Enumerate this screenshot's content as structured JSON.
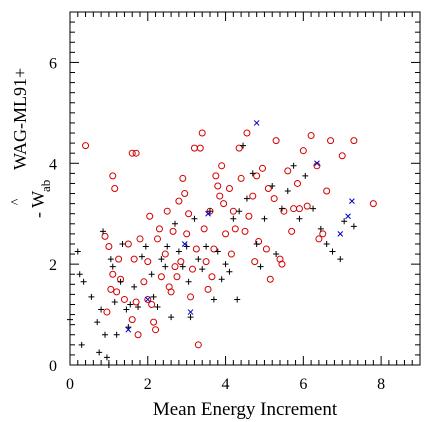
{
  "chart_data": {
    "type": "scatter",
    "xlabel": "Mean Energy Increment",
    "ylabel_main": "WAG-ML91+",
    "ylabel_sub_w": "- W",
    "ylabel_sub_ab": "ab",
    "ylabel_hat": "^",
    "xlim": [
      0,
      9
    ],
    "ylim": [
      0,
      7
    ],
    "x_ticks": [
      0,
      2,
      4,
      6,
      8
    ],
    "x_ticks_labels": [
      "0",
      "2",
      "4",
      "6",
      "8"
    ],
    "y_ticks": [
      0,
      2,
      4,
      6
    ],
    "y_ticks_labels": [
      "0",
      "2",
      "4",
      "6"
    ],
    "grid": false,
    "colors": {
      "circles": "#d40000",
      "plus": "#000000",
      "cross": "#0000cc"
    },
    "series": [
      {
        "marker": "circle",
        "color": "#d40000",
        "points": [
          [
            0.4,
            4.35
          ],
          [
            1.1,
            3.75
          ],
          [
            1.15,
            3.5
          ],
          [
            1.6,
            4.2
          ],
          [
            0.95,
            1.05
          ],
          [
            1.05,
            1.5
          ],
          [
            1.1,
            1.8
          ],
          [
            1.2,
            1.45
          ],
          [
            1.3,
            1.7
          ],
          [
            1.4,
            1.3
          ],
          [
            1.5,
            2.4
          ],
          [
            1.6,
            0.9
          ],
          [
            1.65,
            2.1
          ],
          [
            1.7,
            1.25
          ],
          [
            1.75,
            0.6
          ],
          [
            1.8,
            2.5
          ],
          [
            1.9,
            1.65
          ],
          [
            2.0,
            2.05
          ],
          [
            2.05,
            2.95
          ],
          [
            2.1,
            1.2
          ],
          [
            2.15,
            0.85
          ],
          [
            2.2,
            0.7
          ],
          [
            2.25,
            2.5
          ],
          [
            2.3,
            2.7
          ],
          [
            2.35,
            1.75
          ],
          [
            2.45,
            2.2
          ],
          [
            2.5,
            3.05
          ],
          [
            2.55,
            1.55
          ],
          [
            2.6,
            1.45
          ],
          [
            2.65,
            2.65
          ],
          [
            2.7,
            1.95
          ],
          [
            2.75,
            1.75
          ],
          [
            2.8,
            3.25
          ],
          [
            2.85,
            2.05
          ],
          [
            2.9,
            3.7
          ],
          [
            2.95,
            3.4
          ],
          [
            3.0,
            2.6
          ],
          [
            3.05,
            3.0
          ],
          [
            3.1,
            1.35
          ],
          [
            3.15,
            1.9
          ],
          [
            3.2,
            4.3
          ],
          [
            3.25,
            2.3
          ],
          [
            3.3,
            0.4
          ],
          [
            3.35,
            4.3
          ],
          [
            3.4,
            4.6
          ],
          [
            3.45,
            2.7
          ],
          [
            3.5,
            2.05
          ],
          [
            3.55,
            1.5
          ],
          [
            3.6,
            3.05
          ],
          [
            3.65,
            1.75
          ],
          [
            3.7,
            2.3
          ],
          [
            3.75,
            3.75
          ],
          [
            3.8,
            3.55
          ],
          [
            3.85,
            3.35
          ],
          [
            3.9,
            3.95
          ],
          [
            3.95,
            3.2
          ],
          [
            4.0,
            2.6
          ],
          [
            4.1,
            3.5
          ],
          [
            4.15,
            2.2
          ],
          [
            4.2,
            3.05
          ],
          [
            4.25,
            2.7
          ],
          [
            4.35,
            4.3
          ],
          [
            4.4,
            3.7
          ],
          [
            4.5,
            2.65
          ],
          [
            4.55,
            4.6
          ],
          [
            4.6,
            2.95
          ],
          [
            4.7,
            3.35
          ],
          [
            4.75,
            2.05
          ],
          [
            4.8,
            3.75
          ],
          [
            4.85,
            2.45
          ],
          [
            4.95,
            3.9
          ],
          [
            5.05,
            2.3
          ],
          [
            5.1,
            3.5
          ],
          [
            5.15,
            1.7
          ],
          [
            5.25,
            3.3
          ],
          [
            5.3,
            4.45
          ],
          [
            5.4,
            2.1
          ],
          [
            5.45,
            2.0
          ],
          [
            5.5,
            3.05
          ],
          [
            5.6,
            3.85
          ],
          [
            5.7,
            2.65
          ],
          [
            5.75,
            3.1
          ],
          [
            5.85,
            3.6
          ],
          [
            5.9,
            3.1
          ],
          [
            6.0,
            4.25
          ],
          [
            6.1,
            3.15
          ],
          [
            6.2,
            4.55
          ],
          [
            6.35,
            3.95
          ],
          [
            6.4,
            2.5
          ],
          [
            6.5,
            2.6
          ],
          [
            6.6,
            3.45
          ],
          [
            6.7,
            4.45
          ],
          [
            7.0,
            4.15
          ],
          [
            7.3,
            4.45
          ],
          [
            7.8,
            3.2
          ],
          [
            1.7,
            4.2
          ],
          [
            1.0,
            2.35
          ],
          [
            1.25,
            2.1
          ],
          [
            2.0,
            1.3
          ],
          [
            0.9,
            2.55
          ]
        ]
      },
      {
        "marker": "plus",
        "color": "#000000",
        "points": [
          [
            0.0,
            0.9
          ],
          [
            0.2,
            2.25
          ],
          [
            0.25,
            1.8
          ],
          [
            0.3,
            0.4
          ],
          [
            0.35,
            1.65
          ],
          [
            0.55,
            1.35
          ],
          [
            0.7,
            0.85
          ],
          [
            0.75,
            0.25
          ],
          [
            0.8,
            1.1
          ],
          [
            0.85,
            2.65
          ],
          [
            0.9,
            0.6
          ],
          [
            0.95,
            0.15
          ],
          [
            1.0,
            0.0
          ],
          [
            1.05,
            2.1
          ],
          [
            1.1,
            1.95
          ],
          [
            1.15,
            1.25
          ],
          [
            1.2,
            0.6
          ],
          [
            1.3,
            1.65
          ],
          [
            1.35,
            2.4
          ],
          [
            1.45,
            1.1
          ],
          [
            1.5,
            0.75
          ],
          [
            1.55,
            1.2
          ],
          [
            1.65,
            1.55
          ],
          [
            1.75,
            1.15
          ],
          [
            1.85,
            2.15
          ],
          [
            1.95,
            2.35
          ],
          [
            2.1,
            1.8
          ],
          [
            2.15,
            1.35
          ],
          [
            2.25,
            1.15
          ],
          [
            2.35,
            2.1
          ],
          [
            2.45,
            1.95
          ],
          [
            2.5,
            2.35
          ],
          [
            2.6,
            0.95
          ],
          [
            2.7,
            2.8
          ],
          [
            2.8,
            2.25
          ],
          [
            2.9,
            1.95
          ],
          [
            3.0,
            2.35
          ],
          [
            3.05,
            1.65
          ],
          [
            3.1,
            0.95
          ],
          [
            3.2,
            2.9
          ],
          [
            3.3,
            2.1
          ],
          [
            3.4,
            1.9
          ],
          [
            3.5,
            2.35
          ],
          [
            3.6,
            3.05
          ],
          [
            3.7,
            1.3
          ],
          [
            3.8,
            2.25
          ],
          [
            3.9,
            1.7
          ],
          [
            4.0,
            2.0
          ],
          [
            4.1,
            1.85
          ],
          [
            4.2,
            2.9
          ],
          [
            4.3,
            1.3
          ],
          [
            4.35,
            3.05
          ],
          [
            4.45,
            4.35
          ],
          [
            4.55,
            3.3
          ],
          [
            4.7,
            3.8
          ],
          [
            4.8,
            2.4
          ],
          [
            4.9,
            1.95
          ],
          [
            5.0,
            2.9
          ],
          [
            5.2,
            3.55
          ],
          [
            5.3,
            2.2
          ],
          [
            5.45,
            3.1
          ],
          [
            5.6,
            3.45
          ],
          [
            5.75,
            3.95
          ],
          [
            5.9,
            2.9
          ],
          [
            6.05,
            3.75
          ],
          [
            6.25,
            3.1
          ],
          [
            6.45,
            2.7
          ],
          [
            6.6,
            2.4
          ],
          [
            6.75,
            2.25
          ],
          [
            6.95,
            2.1
          ],
          [
            7.05,
            2.85
          ],
          [
            7.3,
            2.75
          ]
        ]
      },
      {
        "marker": "cross",
        "color": "#0000cc",
        "points": [
          [
            1.5,
            0.7
          ],
          [
            2.0,
            1.3
          ],
          [
            2.95,
            2.4
          ],
          [
            3.1,
            1.05
          ],
          [
            3.55,
            3.0
          ],
          [
            4.8,
            4.8
          ],
          [
            6.35,
            4.0
          ],
          [
            6.95,
            2.6
          ],
          [
            7.15,
            2.95
          ],
          [
            7.25,
            3.25
          ]
        ]
      }
    ]
  }
}
